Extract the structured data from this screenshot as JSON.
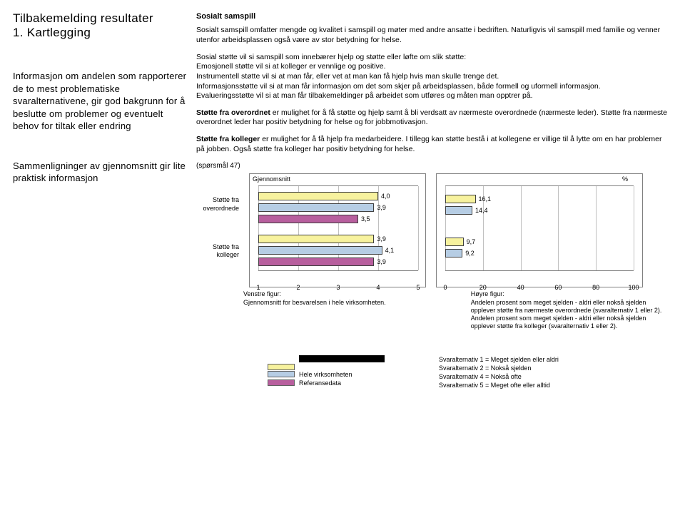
{
  "left": {
    "title": "Tilbakemelding resultater\n1. Kartlegging",
    "block1": "Informasjon om andelen som rapporterer de to mest problematiske svaralternativene, gir god bakgrunn for å beslutte om problemer og eventuelt behov for tiltak eller endring",
    "block2": "Sammenligninger av gjennomsnitt gir lite praktisk informasjon"
  },
  "right": {
    "heading": "Sosialt samspill",
    "p1": "Sosialt samspill omfatter mengde og kvalitet i samspill og møter med andre ansatte i bedriften. Naturligvis vil samspill med familie og venner utenfor arbeidsplassen også være av stor betydning for helse.",
    "p2a": "Sosial støtte vil si samspill som innebærer hjelp og støtte eller løfte om slik støtte:",
    "p2b": "Emosjonell støtte vil si at kolleger er vennlige og positive.",
    "p2c": "Instrumentell støtte vil si at man får, eller vet at man kan få hjelp hvis man skulle trenge det.",
    "p2d": "Informasjonsstøtte vil si at man får informasjon om det som skjer på arbeidsplassen, både formell og uformell informasjon.",
    "p2e": "Evalueringsstøtte vil si at man får tilbakemeldinger på arbeidet som utføres og måten man opptrer på.",
    "p3head": "Støtte fra overordnet",
    "p3": " er mulighet for å få støtte og hjelp samt å bli verdsatt av nærmeste overordnede (nærmeste leder). Støtte fra nærmeste overordnet leder har positiv betydning for helse og for jobbmotivasjon.",
    "p4head": "Støtte fra kolleger",
    "p4": " er mulighet for å få hjelp fra medarbeidere. I tillegg kan støtte bestå i at kollegene er villige til å lytte om en har problemer på jobben. Også støtte fra kolleger har positiv betydning for helse.",
    "qref": "(spørsmål 47)",
    "chartLeft": {
      "title": "Gjennomsnitt",
      "xmin": 1,
      "xmax": 5,
      "xticks": [
        1,
        2,
        3,
        4,
        5
      ],
      "rows": [
        {
          "label": "Støtte fra overordnede"
        },
        {
          "label": "Støtte fra kolleger"
        }
      ],
      "bars": [
        {
          "group": 0,
          "series": 0,
          "val": 4.0,
          "color": "#f7f29e"
        },
        {
          "group": 0,
          "series": 1,
          "val": 3.9,
          "color": "#b6cde4"
        },
        {
          "group": 0,
          "series": 2,
          "val": 3.5,
          "color": "#b85f9e"
        },
        {
          "group": 1,
          "series": 0,
          "val": 3.9,
          "color": "#f7f29e"
        },
        {
          "group": 1,
          "series": 1,
          "val": 4.1,
          "color": "#b6cde4"
        },
        {
          "group": 1,
          "series": 2,
          "val": 3.9,
          "color": "#b85f9e"
        }
      ]
    },
    "chartRight": {
      "title": "%",
      "xmin": 0,
      "xmax": 100,
      "xticks": [
        0,
        20,
        40,
        60,
        80,
        100
      ],
      "bars": [
        {
          "group": 0,
          "series": 0,
          "val": 16.1,
          "color": "#f7f29e"
        },
        {
          "group": 0,
          "series": 1,
          "val": 14.4,
          "color": "#b6cde4"
        },
        {
          "group": 1,
          "series": 0,
          "val": 9.7,
          "color": "#f7f29e"
        },
        {
          "group": 1,
          "series": 1,
          "val": 9.2,
          "color": "#b6cde4"
        }
      ]
    },
    "capLeft": "Venstre figur:\nGjennomsnitt for besvarelsen i hele virksomheten.",
    "capRight": "Høyre figur:\nAndelen prosent som meget sjelden - aldri eller nokså sjelden opplever støtte fra nærmeste overordnede (svaralternativ 1 eller 2).\nAndelen prosent som meget sjelden - aldri eller nokså sjelden opplever støtte fra kolleger (svaralternativ 1 eller 2).",
    "legendItems": [
      {
        "color": "#f7f29e",
        "label": ""
      },
      {
        "color": "#b6cde4",
        "label": "Hele virksomheten"
      },
      {
        "color": "#b85f9e",
        "label": "Referansedata"
      }
    ],
    "svarAlt": "Svaralternativ 1 = Meget sjelden eller aldri\nSvaralternativ 2 = Nokså sjelden\nSvaralternativ 4 = Nokså ofte\nSvaralternativ 5 = Meget ofte eller alltid"
  }
}
